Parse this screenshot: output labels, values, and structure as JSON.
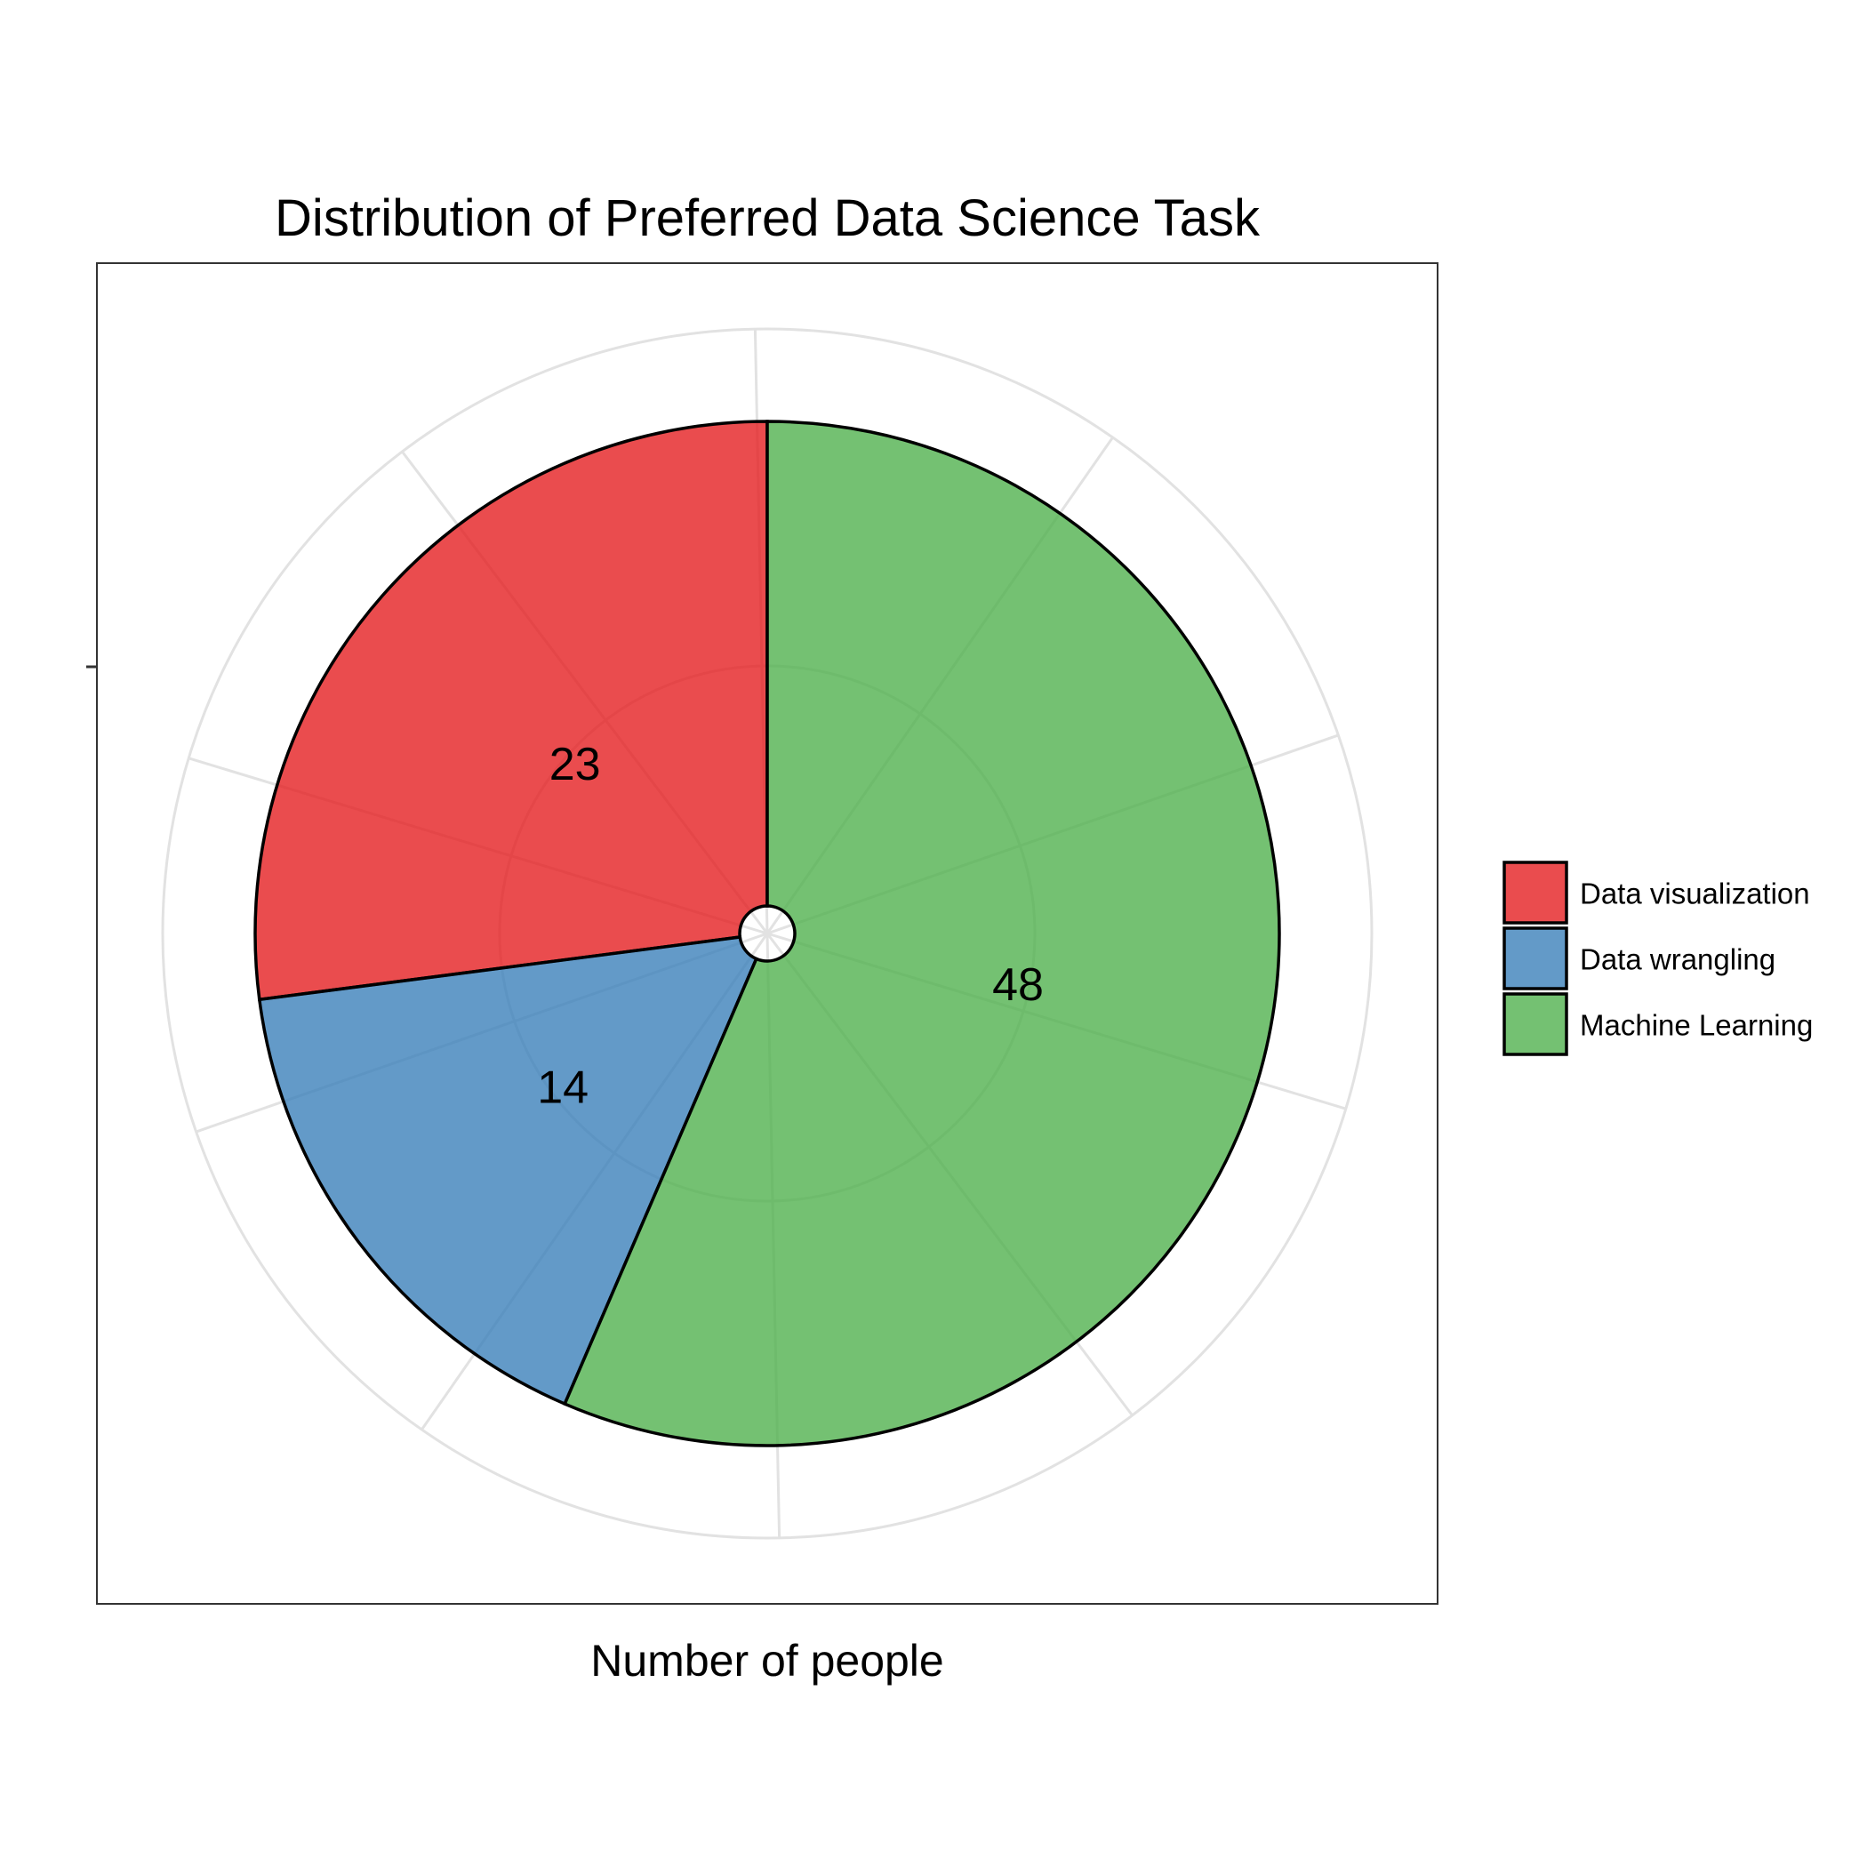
{
  "chart_data": {
    "type": "pie",
    "title": "Distribution of Preferred Data Science Task",
    "xlabel": "Number of people",
    "ylabel": "",
    "categories": [
      "Data visualization",
      "Data wrangling",
      "Machine Learning"
    ],
    "values": [
      23,
      14,
      48
    ],
    "colors": [
      "#E41A1C",
      "#377EB8",
      "#4DAF4A"
    ],
    "legend_position": "right",
    "grid": true
  }
}
